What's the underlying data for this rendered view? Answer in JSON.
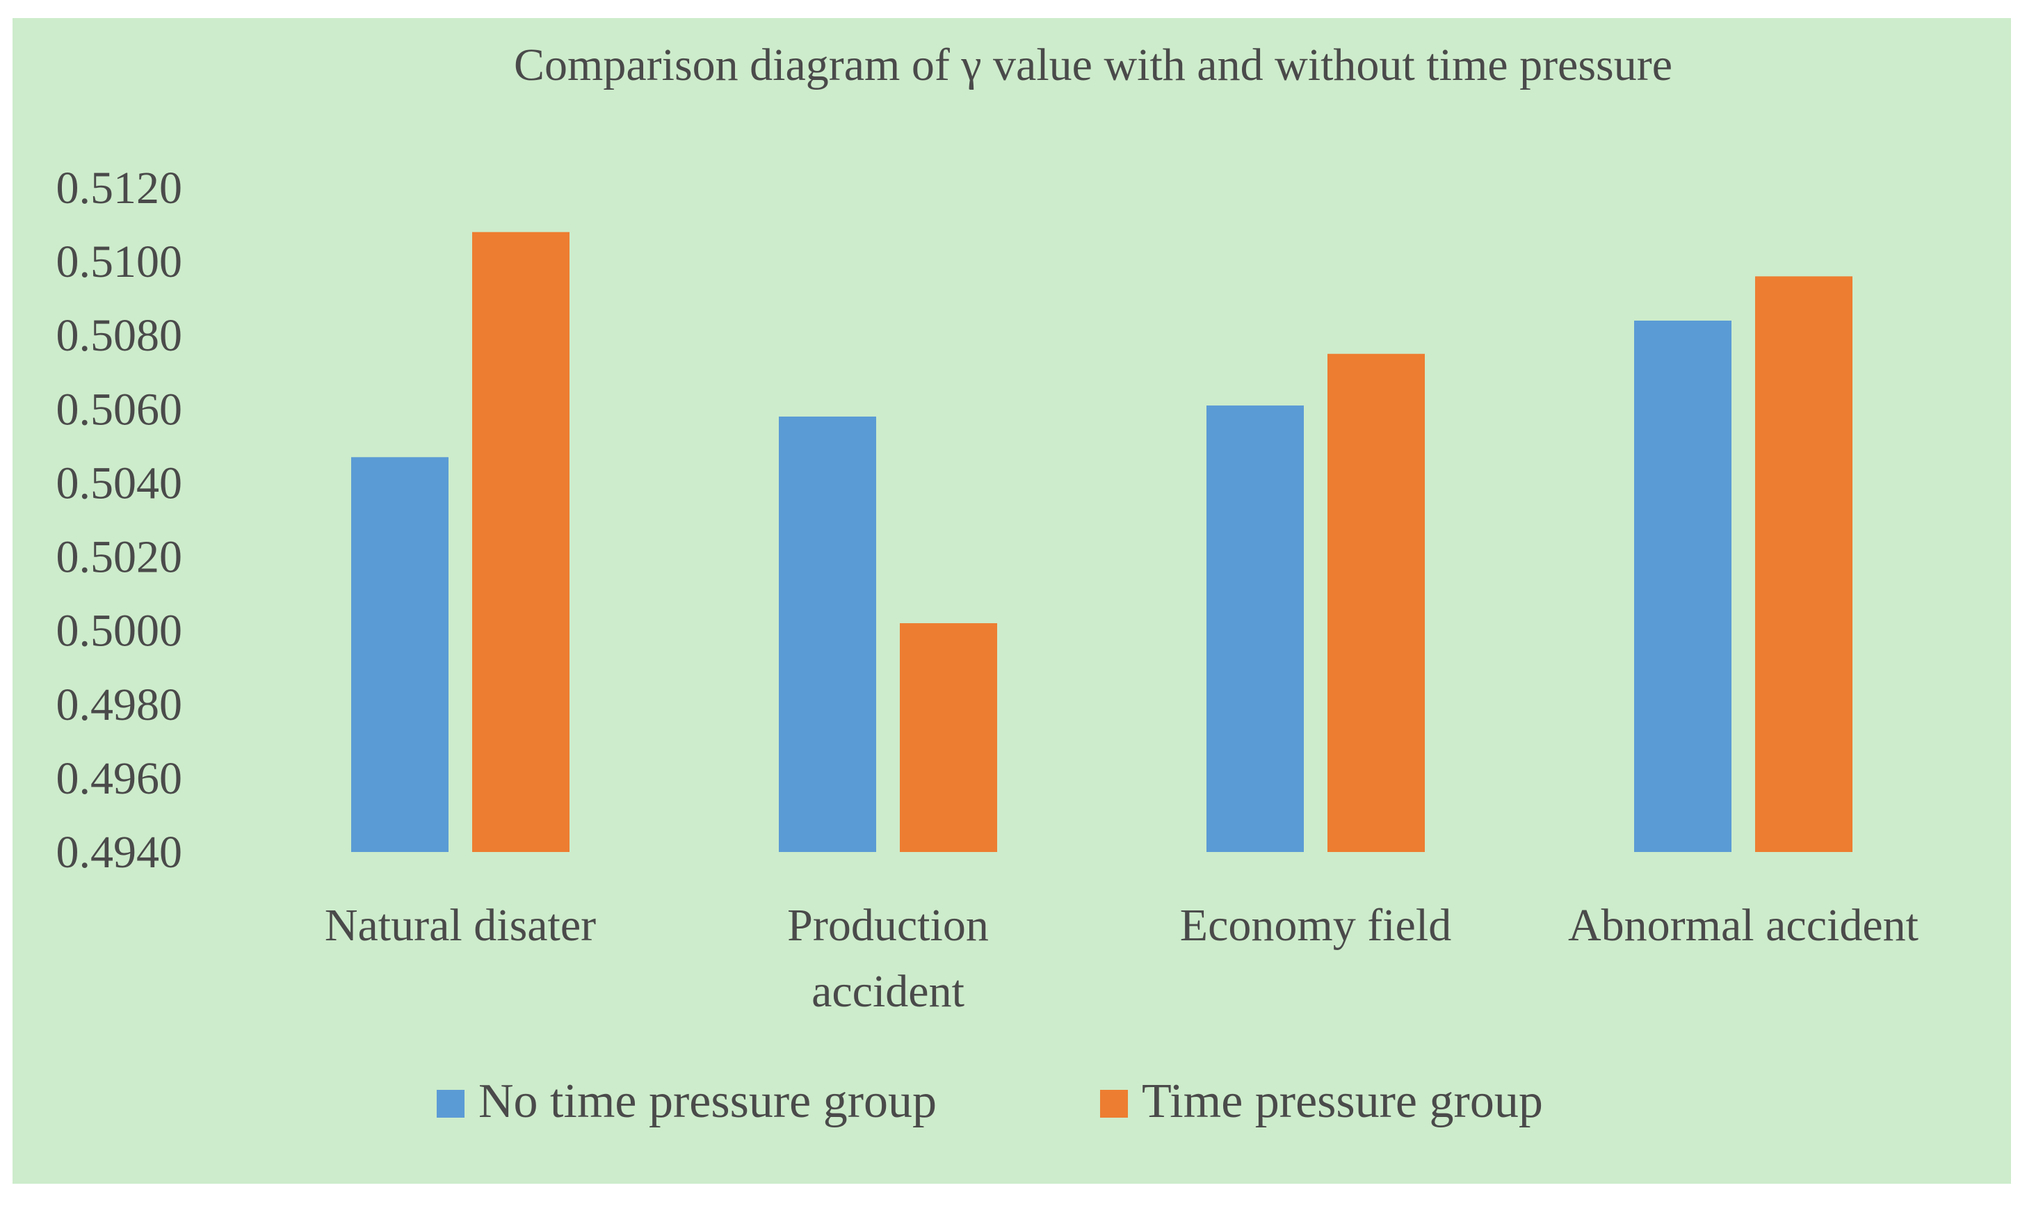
{
  "chart_data": {
    "type": "bar",
    "title": "Comparison diagram of γ value with and without time pressure",
    "xlabel": "",
    "ylabel": "",
    "ylim": [
      0.494,
      0.512
    ],
    "yticks": [
      "0.5120",
      "0.5100",
      "0.5080",
      "0.5060",
      "0.5040",
      "0.5020",
      "0.5000",
      "0.4980",
      "0.4960",
      "0.4940"
    ],
    "ytick_values": [
      0.512,
      0.51,
      0.508,
      0.506,
      0.504,
      0.502,
      0.5,
      0.498,
      0.496,
      0.494
    ],
    "categories": [
      [
        "Natural disater"
      ],
      [
        "Production",
        "accident"
      ],
      [
        "Economy field"
      ],
      [
        "Abnormal accident"
      ]
    ],
    "series": [
      {
        "name": "No time pressure group",
        "color": "#5b9bd5",
        "values": [
          0.5047,
          0.5058,
          0.5061,
          0.5084
        ]
      },
      {
        "name": "Time pressure group",
        "color": "#ed7d31",
        "values": [
          0.5108,
          0.5002,
          0.5075,
          0.5096
        ]
      }
    ],
    "grid": false,
    "legend_position": "bottom-center"
  },
  "colors": {
    "background": "#cdeccb",
    "text": "#4a4a4a"
  }
}
